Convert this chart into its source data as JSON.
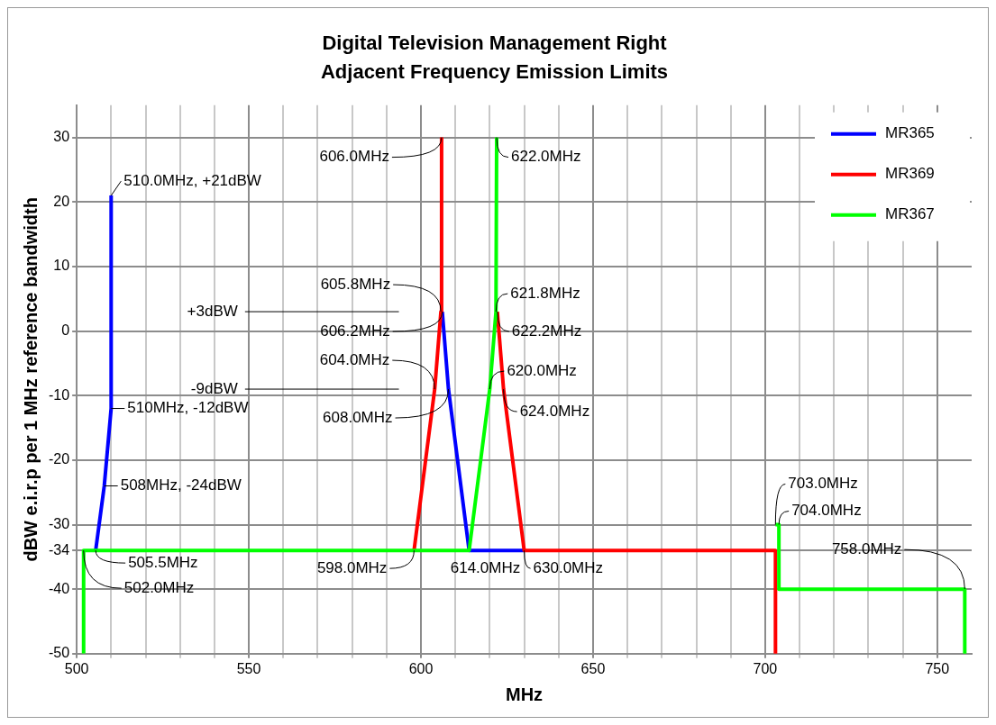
{
  "chart_data": {
    "type": "line",
    "title": "Digital Television Management Right\nAdjacent Frequency Emission Limits",
    "xlabel": "MHz",
    "ylabel": "dBW e.i.r.p per 1 MHz reference bandwidth",
    "xlim": [
      500,
      760
    ],
    "xticks": [
      500,
      {
        "value": 510,
        "label": null
      },
      {
        "value": 520,
        "label": null
      },
      {
        "value": 530,
        "label": null
      },
      {
        "value": 540,
        "label": null
      },
      550,
      {
        "value": 560,
        "label": null
      },
      {
        "value": 570,
        "label": null
      },
      {
        "value": 580,
        "label": null
      },
      {
        "value": 590,
        "label": null
      },
      600,
      {
        "value": 610,
        "label": null
      },
      {
        "value": 620,
        "label": null
      },
      {
        "value": 630,
        "label": null
      },
      {
        "value": 640,
        "label": null
      },
      650,
      {
        "value": 660,
        "label": null
      },
      {
        "value": 670,
        "label": null
      },
      {
        "value": 680,
        "label": null
      },
      {
        "value": 690,
        "label": null
      },
      700,
      {
        "value": 710,
        "label": null
      },
      {
        "value": 720,
        "label": null
      },
      {
        "value": 730,
        "label": null
      },
      {
        "value": 740,
        "label": null
      },
      750
    ],
    "ylim": [
      -50,
      35
    ],
    "yticks": [
      -50,
      -40,
      -34,
      -30,
      -20,
      -10,
      0,
      10,
      20,
      30
    ],
    "grid": true,
    "legend": "top right",
    "marker": "none",
    "line_style": "solid",
    "series": [
      {
        "name": "MR365",
        "color": "#0000ff",
        "x": [
          505.5,
          508,
          510,
          510,
          null,
          606.2,
          608,
          614,
          630
        ],
        "values": [
          -34,
          -24,
          -12,
          21,
          null,
          3,
          -9,
          -34,
          -34
        ]
      },
      {
        "name": "MR369",
        "color": "#ff0000",
        "x": [
          598,
          604,
          605.8,
          606,
          null,
          622.2,
          624,
          630,
          703,
          703
        ],
        "values": [
          -34,
          -9,
          3,
          30,
          null,
          3,
          -9,
          -34,
          -34,
          -50
        ]
      },
      {
        "name": "MR367",
        "color": "#00ff00",
        "x": [
          502,
          502,
          614,
          620,
          621.8,
          622,
          null,
          703,
          704,
          704,
          758,
          758
        ],
        "values": [
          -50,
          -34,
          -34,
          -9,
          3,
          30,
          null,
          -30,
          -30,
          -40,
          -40,
          -50
        ]
      }
    ],
    "ref_lines": [
      {
        "axis": "y",
        "value": 3,
        "label": "+3dBW"
      },
      {
        "axis": "y",
        "value": -9,
        "label": "-9dBW"
      }
    ],
    "annotations": [
      {
        "text": "510.0MHz, +21dBW",
        "x": 510,
        "y": 21
      },
      {
        "text": "510MHz, -12dBW",
        "x": 510,
        "y": -12
      },
      {
        "text": "508MHz, -24dBW",
        "x": 508,
        "y": -24
      },
      {
        "text": "505.5MHz",
        "x": 505.5,
        "y": -34
      },
      {
        "text": "502.0MHz",
        "x": 502,
        "y": -34
      },
      {
        "text": "606.0MHz",
        "x": 606,
        "y": 30
      },
      {
        "text": "622.0MHz",
        "x": 622,
        "y": 30
      },
      {
        "text": "605.8MHz",
        "x": 605.8,
        "y": 3
      },
      {
        "text": "606.2MHz",
        "x": 606.2,
        "y": 3
      },
      {
        "text": "621.8MHz",
        "x": 621.8,
        "y": 3
      },
      {
        "text": "622.2MHz",
        "x": 622.2,
        "y": 3
      },
      {
        "text": "604.0MHz",
        "x": 604,
        "y": -9
      },
      {
        "text": "608.0MHz",
        "x": 608,
        "y": -9
      },
      {
        "text": "620.0MHz",
        "x": 620,
        "y": -9
      },
      {
        "text": "624.0MHz",
        "x": 624,
        "y": -9
      },
      {
        "text": "598.0MHz",
        "x": 598,
        "y": -34
      },
      {
        "text": "614.0MHz",
        "x": 614,
        "y": -34
      },
      {
        "text": "630.0MHz",
        "x": 630,
        "y": -34
      },
      {
        "text": "703.0MHz",
        "x": 703,
        "y": -30
      },
      {
        "text": "704.0MHz",
        "x": 704,
        "y": -30
      },
      {
        "text": "758.0MHz",
        "x": 758,
        "y": -40
      }
    ]
  }
}
